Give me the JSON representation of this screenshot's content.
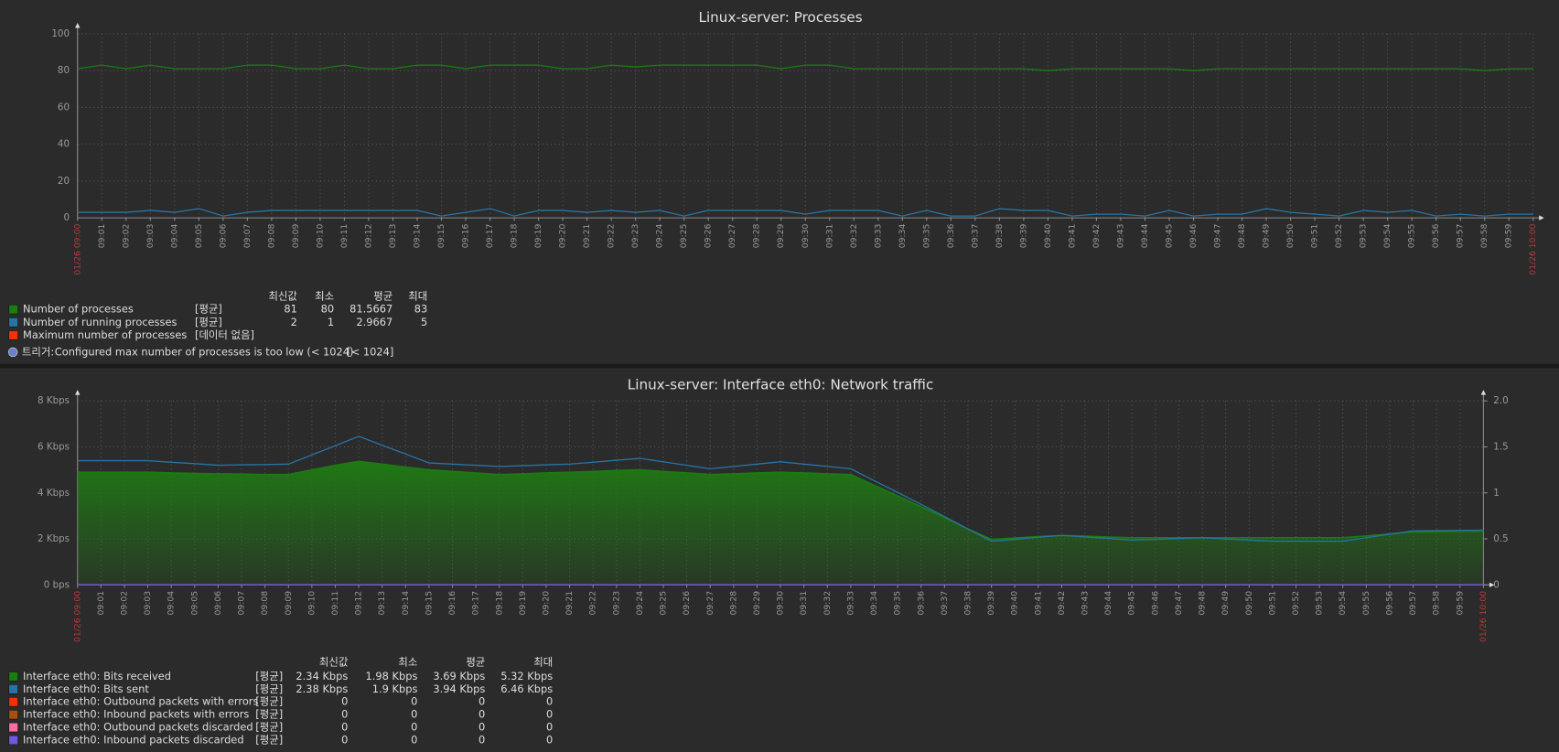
{
  "chart_data": [
    {
      "type": "line",
      "title": "Linux-server: Processes",
      "categories": [
        "01/26 09:00",
        "09:01",
        "09:02",
        "09:03",
        "09:04",
        "09:05",
        "09:06",
        "09:07",
        "09:08",
        "09:09",
        "09:10",
        "09:11",
        "09:12",
        "09:13",
        "09:14",
        "09:15",
        "09:16",
        "09:17",
        "09:18",
        "09:19",
        "09:20",
        "09:21",
        "09:22",
        "09:23",
        "09:24",
        "09:25",
        "09:26",
        "09:27",
        "09:28",
        "09:29",
        "09:30",
        "09:31",
        "09:32",
        "09:33",
        "09:34",
        "09:35",
        "09:36",
        "09:37",
        "09:38",
        "09:39",
        "09:40",
        "09:41",
        "09:42",
        "09:43",
        "09:44",
        "09:45",
        "09:46",
        "09:47",
        "09:48",
        "09:49",
        "09:50",
        "09:51",
        "09:52",
        "09:53",
        "09:54",
        "09:55",
        "09:56",
        "09:57",
        "09:58",
        "09:59",
        "01/26 10:00"
      ],
      "ylim": [
        0,
        100
      ],
      "yticks": [
        0,
        20,
        40,
        60,
        80,
        100
      ],
      "grid": true,
      "legend_columns": [
        "최신값",
        "최소",
        "평균",
        "최대"
      ],
      "series": [
        {
          "name": "Number of processes",
          "color": "#1a7c11",
          "style": "line",
          "function": "[평균]",
          "stats": [
            81,
            80,
            81.5667,
            83
          ],
          "values": [
            81,
            83,
            81,
            83,
            81,
            81,
            81,
            83,
            83,
            81,
            81,
            83,
            81,
            81,
            83,
            83,
            81,
            83,
            83,
            83,
            81,
            81,
            83,
            82,
            83,
            83,
            83,
            83,
            83,
            81,
            83,
            83,
            81,
            81,
            81,
            81,
            81,
            81,
            81,
            81,
            80,
            81,
            81,
            81,
            81,
            81,
            80,
            81,
            81,
            81,
            81,
            81,
            81,
            81,
            81,
            81,
            81,
            81,
            80,
            81,
            81
          ]
        },
        {
          "name": "Number of running processes",
          "color": "#2774a4",
          "style": "line",
          "function": "[평균]",
          "stats": [
            2,
            1,
            2.9667,
            5
          ],
          "values": [
            3,
            3,
            3,
            4,
            3,
            5,
            1,
            3,
            4,
            4,
            4,
            4,
            4,
            4,
            4,
            1,
            3,
            5,
            1,
            4,
            4,
            3,
            4,
            3,
            4,
            1,
            4,
            4,
            4,
            4,
            2,
            4,
            4,
            4,
            1,
            4,
            1,
            1,
            5,
            4,
            4,
            1,
            2,
            2,
            1,
            4,
            1,
            2,
            2,
            5,
            3,
            2,
            1,
            4,
            3,
            4,
            1,
            2,
            1,
            2,
            2
          ]
        },
        {
          "name": "Maximum number of processes",
          "color": "#f63100",
          "style": "line",
          "function": "[데이터 없음]"
        }
      ],
      "trigger": {
        "label": "트리거:",
        "text": "Configured max number of processes is too low (< 1024)",
        "value": "[< 1024]"
      }
    },
    {
      "type": "line",
      "title": "Linux-server: Interface eth0: Network traffic",
      "categories": [
        "01/26 09:00",
        "09:01",
        "09:02",
        "09:03",
        "09:04",
        "09:05",
        "09:06",
        "09:07",
        "09:08",
        "09:09",
        "09:10",
        "09:11",
        "09:12",
        "09:13",
        "09:14",
        "09:15",
        "09:16",
        "09:17",
        "09:18",
        "09:19",
        "09:20",
        "09:21",
        "09:22",
        "09:23",
        "09:24",
        "09:25",
        "09:26",
        "09:27",
        "09:28",
        "09:29",
        "09:30",
        "09:31",
        "09:32",
        "09:33",
        "09:34",
        "09:35",
        "09:36",
        "09:37",
        "09:38",
        "09:39",
        "09:40",
        "09:41",
        "09:42",
        "09:43",
        "09:44",
        "09:45",
        "09:46",
        "09:47",
        "09:48",
        "09:49",
        "09:50",
        "09:51",
        "09:52",
        "09:53",
        "09:54",
        "09:55",
        "09:56",
        "09:57",
        "09:58",
        "09:59",
        "01/26 10:00"
      ],
      "ylim": [
        0,
        8000
      ],
      "yticks": [
        {
          "value": 0,
          "label": "0 bps"
        },
        {
          "value": 2000,
          "label": "2 Kbps"
        },
        {
          "value": 4000,
          "label": "4 Kbps"
        },
        {
          "value": 6000,
          "label": "6 Kbps"
        },
        {
          "value": 8000,
          "label": "8 Kbps"
        }
      ],
      "y2lim": [
        0,
        2
      ],
      "y2ticks": [
        0,
        0.5,
        1,
        1.5,
        {
          "value": 2,
          "label": "2.0"
        }
      ],
      "grid": true,
      "legend_columns": [
        "최신값",
        "최소",
        "평균",
        "최대"
      ],
      "series": [
        {
          "name": "Interface eth0: Bits received",
          "color": "#1a7c11",
          "style": "filled",
          "function": "[평균]",
          "stats": [
            "2.34 Kbps",
            "1.98 Kbps",
            "3.69 Kbps",
            "5.32 Kbps"
          ],
          "values": [
            4900,
            4900,
            4900,
            4900,
            4870,
            4850,
            4830,
            4820,
            4800,
            4800,
            5000,
            5200,
            5370,
            5250,
            5120,
            5000,
            4930,
            4870,
            4800,
            4830,
            4870,
            4900,
            4930,
            4970,
            5000,
            4930,
            4870,
            4800,
            4830,
            4870,
            4900,
            4870,
            4830,
            4800,
            4330,
            3870,
            3400,
            2920,
            2430,
            1980,
            2040,
            2100,
            2150,
            2120,
            2080,
            2050,
            2050,
            2050,
            2050,
            2050,
            2050,
            2050,
            2050,
            2050,
            2050,
            2130,
            2220,
            2300,
            2310,
            2330,
            2340
          ]
        },
        {
          "name": "Interface eth0: Bits sent",
          "color": "#2774a4",
          "style": "line",
          "function": "[평균]",
          "stats": [
            "2.38 Kbps",
            "1.9 Kbps",
            "3.94 Kbps",
            "6.46 Kbps"
          ],
          "values": [
            5400,
            5400,
            5400,
            5400,
            5330,
            5270,
            5200,
            5220,
            5230,
            5250,
            5650,
            6050,
            6460,
            6070,
            5690,
            5300,
            5250,
            5200,
            5150,
            5180,
            5220,
            5250,
            5330,
            5420,
            5500,
            5350,
            5200,
            5050,
            5150,
            5250,
            5350,
            5250,
            5150,
            5050,
            4530,
            4020,
            3500,
            2970,
            2430,
            1900,
            1980,
            2070,
            2150,
            2080,
            2020,
            1950,
            1980,
            2020,
            2050,
            2000,
            1950,
            1900,
            1900,
            1900,
            1900,
            2050,
            2200,
            2350,
            2360,
            2370,
            2380
          ]
        },
        {
          "name": "Interface eth0: Outbound packets with errors",
          "color": "#f63100",
          "style": "line",
          "axis": "y2",
          "function": "[평균]",
          "stats": [
            0,
            0,
            0,
            0
          ],
          "values": [
            0,
            0,
            0,
            0,
            0,
            0,
            0,
            0,
            0,
            0,
            0,
            0,
            0,
            0,
            0,
            0,
            0,
            0,
            0,
            0,
            0,
            0,
            0,
            0,
            0,
            0,
            0,
            0,
            0,
            0,
            0,
            0,
            0,
            0,
            0,
            0,
            0,
            0,
            0,
            0,
            0,
            0,
            0,
            0,
            0,
            0,
            0,
            0,
            0,
            0,
            0,
            0,
            0,
            0,
            0,
            0,
            0,
            0,
            0,
            0,
            0
          ]
        },
        {
          "name": "Interface eth0: Inbound packets with errors",
          "color": "#a54f10",
          "style": "line",
          "axis": "y2",
          "function": "[평균]",
          "stats": [
            0,
            0,
            0,
            0
          ],
          "values": [
            0,
            0,
            0,
            0,
            0,
            0,
            0,
            0,
            0,
            0,
            0,
            0,
            0,
            0,
            0,
            0,
            0,
            0,
            0,
            0,
            0,
            0,
            0,
            0,
            0,
            0,
            0,
            0,
            0,
            0,
            0,
            0,
            0,
            0,
            0,
            0,
            0,
            0,
            0,
            0,
            0,
            0,
            0,
            0,
            0,
            0,
            0,
            0,
            0,
            0,
            0,
            0,
            0,
            0,
            0,
            0,
            0,
            0,
            0,
            0,
            0
          ]
        },
        {
          "name": "Interface eth0: Outbound packets discarded",
          "color": "#fc6ea3",
          "style": "line",
          "axis": "y2",
          "function": "[평균]",
          "stats": [
            0,
            0,
            0,
            0
          ],
          "values": [
            0,
            0,
            0,
            0,
            0,
            0,
            0,
            0,
            0,
            0,
            0,
            0,
            0,
            0,
            0,
            0,
            0,
            0,
            0,
            0,
            0,
            0,
            0,
            0,
            0,
            0,
            0,
            0,
            0,
            0,
            0,
            0,
            0,
            0,
            0,
            0,
            0,
            0,
            0,
            0,
            0,
            0,
            0,
            0,
            0,
            0,
            0,
            0,
            0,
            0,
            0,
            0,
            0,
            0,
            0,
            0,
            0,
            0,
            0,
            0,
            0
          ]
        },
        {
          "name": "Interface eth0: Inbound packets discarded",
          "color": "#6c59dc",
          "style": "line",
          "axis": "y2",
          "function": "[평균]",
          "stats": [
            0,
            0,
            0,
            0
          ],
          "values": [
            0,
            0,
            0,
            0,
            0,
            0,
            0,
            0,
            0,
            0,
            0,
            0,
            0,
            0,
            0,
            0,
            0,
            0,
            0,
            0,
            0,
            0,
            0,
            0,
            0,
            0,
            0,
            0,
            0,
            0,
            0,
            0,
            0,
            0,
            0,
            0,
            0,
            0,
            0,
            0,
            0,
            0,
            0,
            0,
            0,
            0,
            0,
            0,
            0,
            0,
            0,
            0,
            0,
            0,
            0,
            0,
            0,
            0,
            0,
            0,
            0
          ]
        }
      ]
    }
  ]
}
